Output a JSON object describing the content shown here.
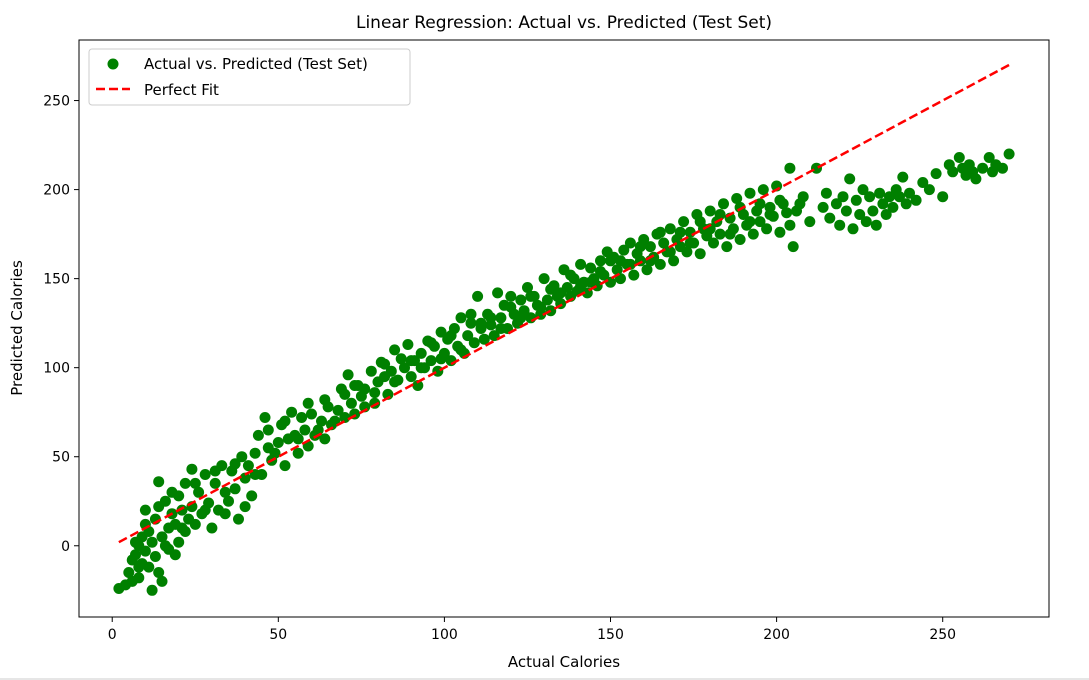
{
  "chart_data": {
    "type": "scatter",
    "title": "Linear Regression: Actual vs. Predicted (Test Set)",
    "xlabel": "Actual Calories",
    "ylabel": "Predicted Calories",
    "xlim": [
      -10,
      282
    ],
    "ylim": [
      -40,
      284
    ],
    "xticks": [
      0,
      50,
      100,
      150,
      200,
      250
    ],
    "yticks": [
      0,
      50,
      100,
      150,
      200,
      250
    ],
    "grid": false,
    "legend_position": "top-left",
    "series": [
      {
        "name": "Actual vs. Predicted (Test Set)",
        "kind": "scatter",
        "color": "#008000",
        "points": [
          [
            2,
            -24
          ],
          [
            4,
            -22
          ],
          [
            5,
            -15
          ],
          [
            6,
            -20
          ],
          [
            6,
            -8
          ],
          [
            7,
            -5
          ],
          [
            7,
            2
          ],
          [
            8,
            -18
          ],
          [
            8,
            0
          ],
          [
            9,
            -10
          ],
          [
            9,
            5
          ],
          [
            10,
            -3
          ],
          [
            10,
            12
          ],
          [
            11,
            -12
          ],
          [
            11,
            8
          ],
          [
            12,
            -25
          ],
          [
            12,
            2
          ],
          [
            13,
            15
          ],
          [
            13,
            -6
          ],
          [
            14,
            22
          ],
          [
            14,
            36
          ],
          [
            15,
            5
          ],
          [
            15,
            -20
          ],
          [
            16,
            25
          ],
          [
            17,
            10
          ],
          [
            17,
            -2
          ],
          [
            18,
            18
          ],
          [
            18,
            30
          ],
          [
            19,
            12
          ],
          [
            20,
            28
          ],
          [
            20,
            2
          ],
          [
            21,
            20
          ],
          [
            22,
            35
          ],
          [
            22,
            8
          ],
          [
            23,
            15
          ],
          [
            24,
            43
          ],
          [
            24,
            22
          ],
          [
            25,
            12
          ],
          [
            26,
            30
          ],
          [
            27,
            18
          ],
          [
            28,
            40
          ],
          [
            29,
            24
          ],
          [
            30,
            10
          ],
          [
            31,
            35
          ],
          [
            32,
            20
          ],
          [
            33,
            45
          ],
          [
            34,
            30
          ],
          [
            35,
            25
          ],
          [
            36,
            42
          ],
          [
            37,
            32
          ],
          [
            38,
            15
          ],
          [
            39,
            50
          ],
          [
            40,
            38
          ],
          [
            41,
            45
          ],
          [
            42,
            28
          ],
          [
            43,
            52
          ],
          [
            44,
            62
          ],
          [
            45,
            40
          ],
          [
            46,
            72
          ],
          [
            47,
            55
          ],
          [
            48,
            48
          ],
          [
            50,
            58
          ],
          [
            51,
            68
          ],
          [
            52,
            45
          ],
          [
            53,
            60
          ],
          [
            54,
            75
          ],
          [
            55,
            62
          ],
          [
            56,
            52
          ],
          [
            57,
            72
          ],
          [
            58,
            65
          ],
          [
            59,
            56
          ],
          [
            60,
            74
          ],
          [
            62,
            65
          ],
          [
            63,
            70
          ],
          [
            64,
            60
          ],
          [
            65,
            78
          ],
          [
            66,
            68
          ],
          [
            68,
            76
          ],
          [
            69,
            88
          ],
          [
            70,
            72
          ],
          [
            71,
            96
          ],
          [
            72,
            80
          ],
          [
            73,
            74
          ],
          [
            74,
            90
          ],
          [
            75,
            84
          ],
          [
            76,
            78
          ],
          [
            78,
            98
          ],
          [
            79,
            86
          ],
          [
            80,
            92
          ],
          [
            81,
            103
          ],
          [
            82,
            95
          ],
          [
            83,
            85
          ],
          [
            84,
            98
          ],
          [
            85,
            110
          ],
          [
            86,
            93
          ],
          [
            88,
            100
          ],
          [
            89,
            113
          ],
          [
            90,
            95
          ],
          [
            91,
            104
          ],
          [
            92,
            90
          ],
          [
            93,
            108
          ],
          [
            94,
            100
          ],
          [
            95,
            115
          ],
          [
            96,
            104
          ],
          [
            97,
            112
          ],
          [
            98,
            98
          ],
          [
            99,
            120
          ],
          [
            100,
            108
          ],
          [
            101,
            116
          ],
          [
            102,
            104
          ],
          [
            103,
            122
          ],
          [
            104,
            112
          ],
          [
            105,
            128
          ],
          [
            106,
            108
          ],
          [
            107,
            118
          ],
          [
            108,
            125
          ],
          [
            109,
            114
          ],
          [
            110,
            140
          ],
          [
            111,
            122
          ],
          [
            112,
            116
          ],
          [
            113,
            130
          ],
          [
            114,
            124
          ],
          [
            115,
            118
          ],
          [
            116,
            142
          ],
          [
            117,
            128
          ],
          [
            118,
            135
          ],
          [
            119,
            122
          ],
          [
            120,
            140
          ],
          [
            121,
            130
          ],
          [
            122,
            125
          ],
          [
            123,
            138
          ],
          [
            124,
            132
          ],
          [
            125,
            145
          ],
          [
            126,
            128
          ],
          [
            127,
            140
          ],
          [
            128,
            135
          ],
          [
            129,
            130
          ],
          [
            130,
            150
          ],
          [
            131,
            138
          ],
          [
            132,
            132
          ],
          [
            133,
            146
          ],
          [
            134,
            140
          ],
          [
            135,
            136
          ],
          [
            136,
            155
          ],
          [
            137,
            145
          ],
          [
            138,
            140
          ],
          [
            139,
            150
          ],
          [
            140,
            143
          ],
          [
            141,
            158
          ],
          [
            142,
            148
          ],
          [
            143,
            142
          ],
          [
            144,
            156
          ],
          [
            145,
            150
          ],
          [
            146,
            146
          ],
          [
            147,
            160
          ],
          [
            148,
            152
          ],
          [
            149,
            165
          ],
          [
            150,
            148
          ],
          [
            151,
            162
          ],
          [
            152,
            155
          ],
          [
            153,
            150
          ],
          [
            154,
            166
          ],
          [
            155,
            158
          ],
          [
            156,
            170
          ],
          [
            157,
            152
          ],
          [
            158,
            164
          ],
          [
            159,
            160
          ],
          [
            160,
            172
          ],
          [
            161,
            155
          ],
          [
            162,
            168
          ],
          [
            163,
            162
          ],
          [
            164,
            175
          ],
          [
            165,
            158
          ],
          [
            166,
            170
          ],
          [
            167,
            165
          ],
          [
            168,
            178
          ],
          [
            169,
            160
          ],
          [
            170,
            172
          ],
          [
            171,
            168
          ],
          [
            172,
            182
          ],
          [
            173,
            165
          ],
          [
            174,
            176
          ],
          [
            175,
            170
          ],
          [
            176,
            186
          ],
          [
            177,
            164
          ],
          [
            178,
            178
          ],
          [
            179,
            174
          ],
          [
            180,
            188
          ],
          [
            181,
            170
          ],
          [
            182,
            182
          ],
          [
            183,
            175
          ],
          [
            184,
            192
          ],
          [
            185,
            168
          ],
          [
            186,
            184
          ],
          [
            187,
            178
          ],
          [
            188,
            195
          ],
          [
            189,
            172
          ],
          [
            190,
            186
          ],
          [
            191,
            180
          ],
          [
            192,
            198
          ],
          [
            193,
            175
          ],
          [
            194,
            188
          ],
          [
            195,
            182
          ],
          [
            196,
            200
          ],
          [
            197,
            178
          ],
          [
            198,
            190
          ],
          [
            199,
            185
          ],
          [
            200,
            202
          ],
          [
            201,
            176
          ],
          [
            202,
            192
          ],
          [
            203,
            187
          ],
          [
            204,
            212
          ],
          [
            205,
            168
          ],
          [
            206,
            188
          ],
          [
            208,
            196
          ],
          [
            210,
            182
          ],
          [
            212,
            212
          ],
          [
            214,
            190
          ],
          [
            215,
            198
          ],
          [
            216,
            184
          ],
          [
            218,
            192
          ],
          [
            219,
            180
          ],
          [
            220,
            196
          ],
          [
            221,
            188
          ],
          [
            222,
            206
          ],
          [
            223,
            178
          ],
          [
            224,
            194
          ],
          [
            225,
            186
          ],
          [
            226,
            200
          ],
          [
            227,
            182
          ],
          [
            228,
            196
          ],
          [
            229,
            188
          ],
          [
            230,
            180
          ],
          [
            231,
            198
          ],
          [
            232,
            192
          ],
          [
            233,
            186
          ],
          [
            234,
            196
          ],
          [
            235,
            190
          ],
          [
            236,
            200
          ],
          [
            237,
            196
          ],
          [
            238,
            207
          ],
          [
            239,
            192
          ],
          [
            240,
            198
          ],
          [
            242,
            194
          ],
          [
            244,
            204
          ],
          [
            246,
            200
          ],
          [
            248,
            209
          ],
          [
            250,
            196
          ],
          [
            252,
            214
          ],
          [
            253,
            210
          ],
          [
            255,
            218
          ],
          [
            256,
            212
          ],
          [
            257,
            208
          ],
          [
            258,
            214
          ],
          [
            259,
            210
          ],
          [
            260,
            206
          ],
          [
            262,
            212
          ],
          [
            264,
            218
          ],
          [
            265,
            210
          ],
          [
            266,
            214
          ],
          [
            268,
            212
          ],
          [
            270,
            220
          ],
          [
            8,
            -12
          ],
          [
            10,
            20
          ],
          [
            14,
            -15
          ],
          [
            16,
            0
          ],
          [
            19,
            -5
          ],
          [
            21,
            10
          ],
          [
            25,
            35
          ],
          [
            28,
            20
          ],
          [
            31,
            42
          ],
          [
            34,
            18
          ],
          [
            37,
            46
          ],
          [
            40,
            22
          ],
          [
            43,
            40
          ],
          [
            47,
            65
          ],
          [
            49,
            52
          ],
          [
            52,
            70
          ],
          [
            56,
            60
          ],
          [
            59,
            80
          ],
          [
            61,
            62
          ],
          [
            64,
            82
          ],
          [
            67,
            70
          ],
          [
            70,
            85
          ],
          [
            73,
            90
          ],
          [
            76,
            88
          ],
          [
            79,
            80
          ],
          [
            82,
            102
          ],
          [
            85,
            92
          ],
          [
            87,
            105
          ],
          [
            90,
            104
          ],
          [
            93,
            100
          ],
          [
            96,
            114
          ],
          [
            99,
            105
          ],
          [
            102,
            118
          ],
          [
            105,
            110
          ],
          [
            108,
            130
          ],
          [
            111,
            125
          ],
          [
            114,
            128
          ],
          [
            117,
            122
          ],
          [
            120,
            134
          ],
          [
            123,
            128
          ],
          [
            126,
            140
          ],
          [
            129,
            134
          ],
          [
            132,
            144
          ],
          [
            135,
            142
          ],
          [
            138,
            152
          ],
          [
            141,
            146
          ],
          [
            144,
            148
          ],
          [
            147,
            154
          ],
          [
            150,
            160
          ],
          [
            153,
            160
          ],
          [
            156,
            158
          ],
          [
            159,
            168
          ],
          [
            162,
            160
          ],
          [
            165,
            176
          ],
          [
            168,
            165
          ],
          [
            171,
            176
          ],
          [
            174,
            170
          ],
          [
            177,
            182
          ],
          [
            180,
            178
          ],
          [
            183,
            186
          ],
          [
            186,
            175
          ],
          [
            189,
            190
          ],
          [
            192,
            182
          ],
          [
            195,
            192
          ],
          [
            198,
            186
          ],
          [
            201,
            194
          ],
          [
            204,
            180
          ],
          [
            207,
            192
          ]
        ]
      },
      {
        "name": "Perfect Fit",
        "kind": "line",
        "style": "dashed",
        "color": "#ff0000",
        "points": [
          [
            2,
            2
          ],
          [
            270,
            270
          ]
        ]
      }
    ]
  }
}
